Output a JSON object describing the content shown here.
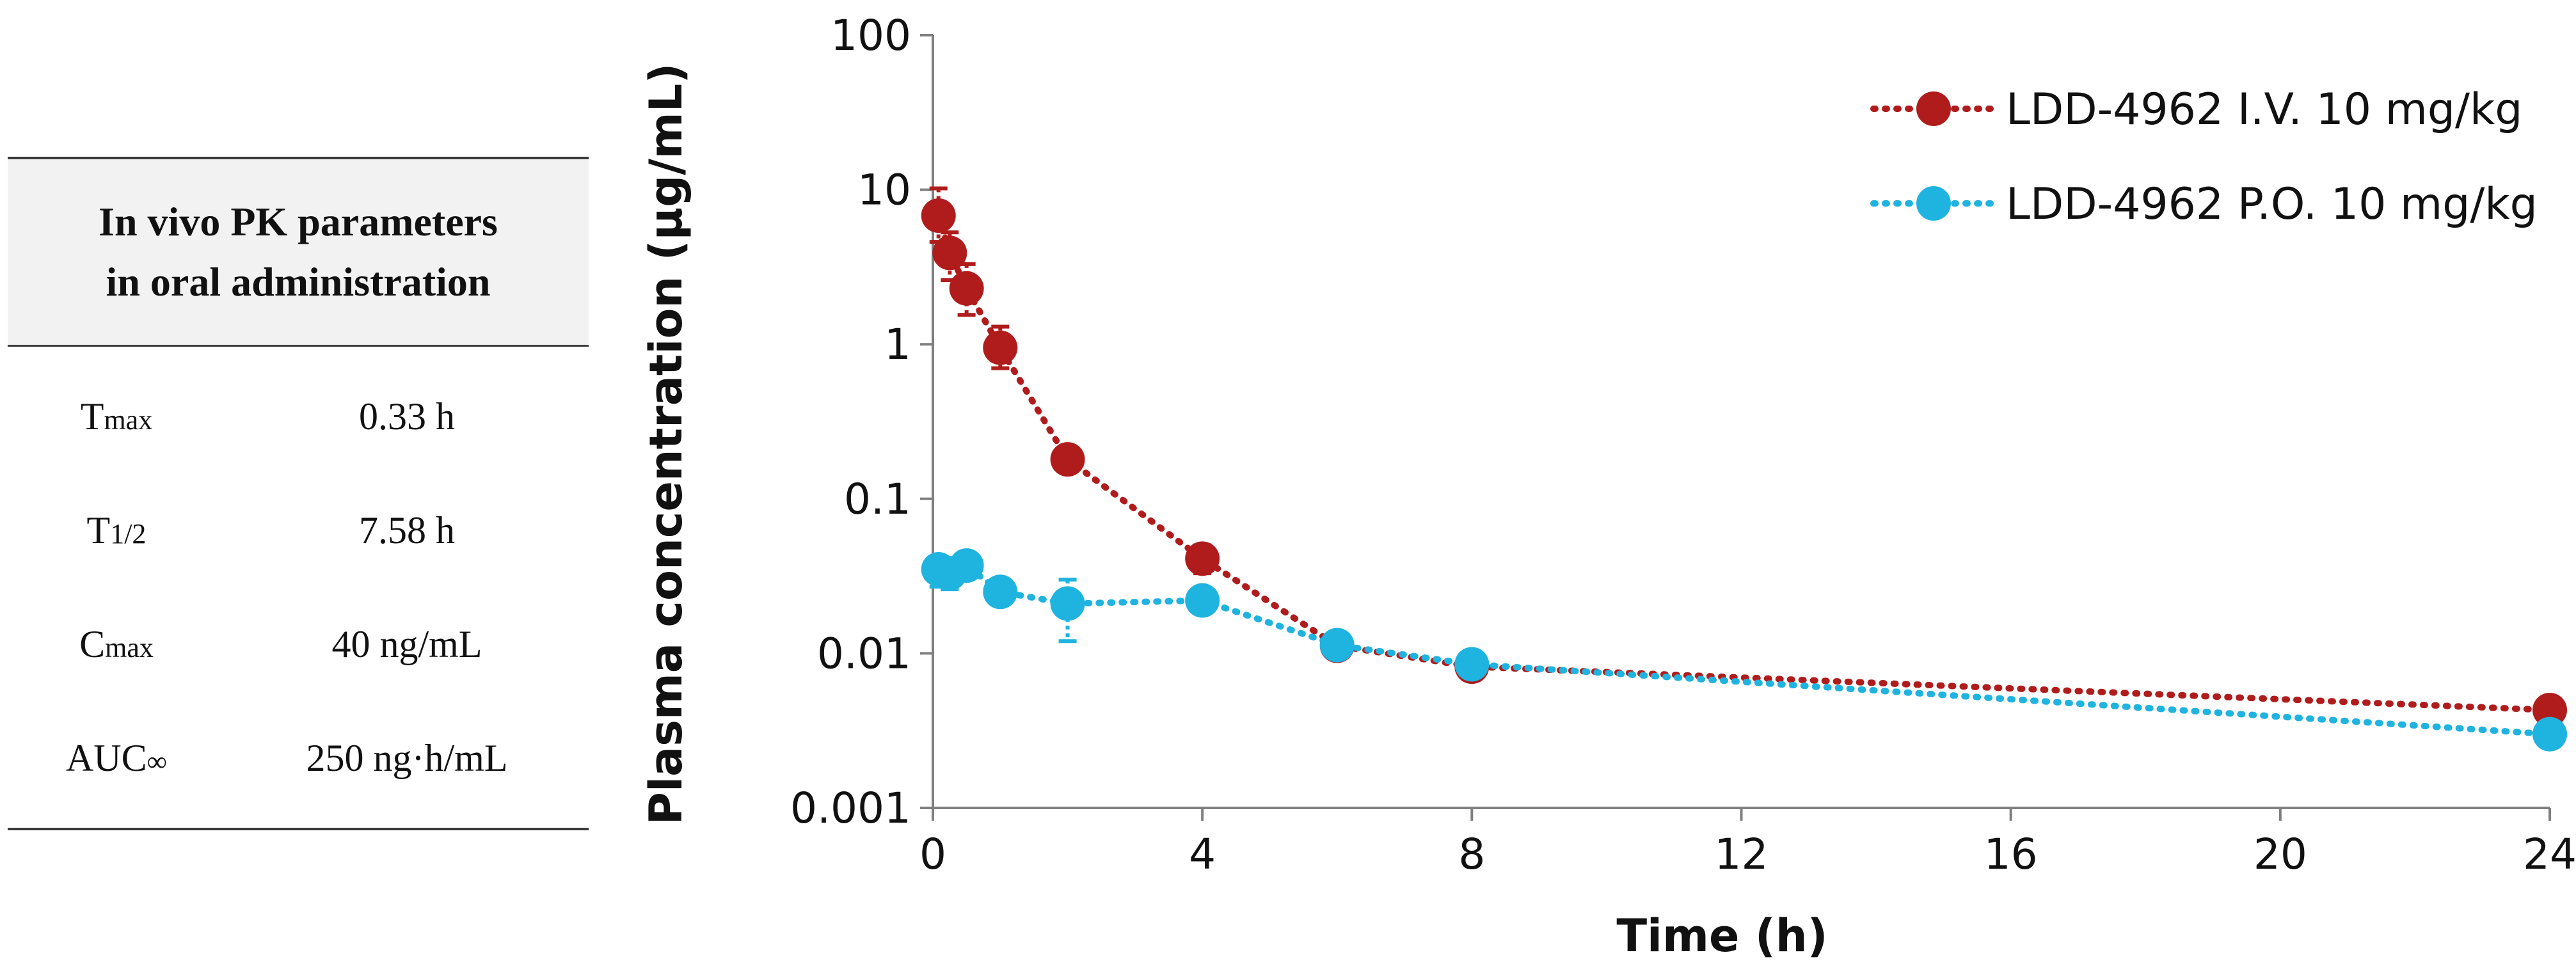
{
  "table": {
    "header": [
      "In vivo PK parameters",
      "in oral administration"
    ],
    "rows": [
      {
        "param_main": "T",
        "param_sub": "max",
        "value": "0.33 h"
      },
      {
        "param_main": "T",
        "param_sub": "1/2",
        "value": "7.58 h"
      },
      {
        "param_main": "C",
        "param_sub": "max",
        "value": "40 ng/mL"
      },
      {
        "param_main": "AUC",
        "param_sub": "∞",
        "value": "250 ng·h/mL"
      }
    ]
  },
  "chart_data": {
    "type": "line",
    "yscale": "log",
    "xlabel": "Time (h)",
    "ylabel": "Plasma concentration (μg/mL)",
    "xlim": [
      0,
      24
    ],
    "ylim": [
      0.001,
      100
    ],
    "xticks": [
      0,
      4,
      8,
      12,
      16,
      20,
      24
    ],
    "xtick_labels": [
      "0",
      "4",
      "8",
      "12",
      "16",
      "20",
      "24"
    ],
    "yticks": [
      0.001,
      0.01,
      0.1,
      1,
      10,
      100
    ],
    "ytick_labels": [
      "0.001",
      "0.01",
      "0.1",
      "1",
      "10",
      "100"
    ],
    "legend_position": "top-right",
    "series": [
      {
        "name": "LDD-4962 I.V. 10 mg/kg",
        "color": "#b01c1c",
        "x": [
          0.083,
          0.25,
          0.5,
          1,
          2,
          4,
          6,
          8,
          24
        ],
        "y": [
          6.8,
          3.9,
          2.3,
          0.95,
          0.18,
          0.041,
          0.0112,
          0.0082,
          0.0043
        ],
        "err_low": [
          4.6,
          2.6,
          1.55,
          0.7,
          0.15,
          0.033,
          0.0103,
          0.0078,
          0.0039
        ],
        "err_high": [
          10.2,
          5.3,
          3.3,
          1.3,
          0.2,
          0.05,
          0.0121,
          0.0086,
          0.0047
        ]
      },
      {
        "name": "LDD-4962 P.O. 10 mg/kg",
        "color": "#1fb3e0",
        "x": [
          0.083,
          0.25,
          0.5,
          1,
          2,
          4,
          6,
          8,
          24
        ],
        "y": [
          0.035,
          0.033,
          0.037,
          0.025,
          0.021,
          0.022,
          0.0113,
          0.0085,
          0.003
        ],
        "err_low": [
          0.027,
          0.026,
          0.031,
          0.021,
          0.012,
          0.019,
          0.0103,
          0.0078,
          0.0026
        ],
        "err_high": [
          0.042,
          0.039,
          0.045,
          0.03,
          0.03,
          0.025,
          0.0123,
          0.0092,
          0.0034
        ]
      }
    ]
  }
}
